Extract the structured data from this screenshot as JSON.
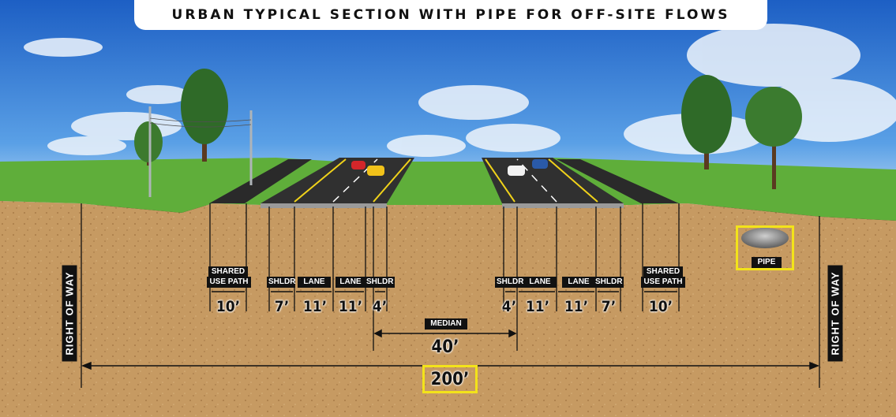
{
  "title": "URBAN TYPICAL SECTION WITH PIPE FOR OFF-SITE FLOWS",
  "right_of_way_label": "RIGHT OF WAY",
  "pipe_label": "PIPE",
  "median_label": "MEDIAN",
  "median_width": "40’",
  "total_width": "200’",
  "left_elements": [
    {
      "label": "SHARED\nUSE PATH",
      "width": "10’"
    },
    {
      "label": "SHLDR",
      "width": "7’"
    },
    {
      "label": "LANE",
      "width": "11’"
    },
    {
      "label": "LANE",
      "width": "11’"
    },
    {
      "label": "SHLDR",
      "width": "4’"
    }
  ],
  "right_elements": [
    {
      "label": "SHLDR",
      "width": "4’"
    },
    {
      "label": "LANE",
      "width": "11’"
    },
    {
      "label": "LANE",
      "width": "11’"
    },
    {
      "label": "SHLDR",
      "width": "7’"
    },
    {
      "label": "SHARED\nUSE PATH",
      "width": "10’"
    }
  ],
  "colors": {
    "highlight": "#f3e31a",
    "soil": "#c69a62",
    "grass": "#5fae3a",
    "sky": "#3b7fd4"
  }
}
